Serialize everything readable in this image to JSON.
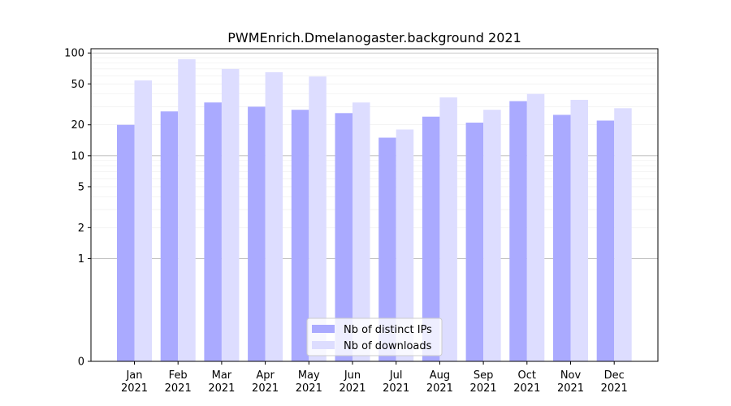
{
  "chart_data": {
    "type": "bar",
    "title": "PWMEnrich.Dmelanogaster.background 2021",
    "xlabel": "",
    "ylabel": "",
    "yscale": "symlog",
    "ylim": [
      0,
      110
    ],
    "yticks": [
      0,
      1,
      2,
      5,
      10,
      20,
      50,
      100
    ],
    "ytick_labels": [
      "0",
      "1",
      "2",
      "5",
      "10",
      "20",
      "50",
      "100"
    ],
    "grid": "horizontal",
    "legend_position": "bottom-center",
    "categories": [
      "Jan\n2021",
      "Feb\n2021",
      "Mar\n2021",
      "Apr\n2021",
      "May\n2021",
      "Jun\n2021",
      "Jul\n2021",
      "Aug\n2021",
      "Sep\n2021",
      "Oct\n2021",
      "Nov\n2021",
      "Dec\n2021"
    ],
    "category_lines": [
      [
        "Jan",
        "2021"
      ],
      [
        "Feb",
        "2021"
      ],
      [
        "Mar",
        "2021"
      ],
      [
        "Apr",
        "2021"
      ],
      [
        "May",
        "2021"
      ],
      [
        "Jun",
        "2021"
      ],
      [
        "Jul",
        "2021"
      ],
      [
        "Aug",
        "2021"
      ],
      [
        "Sep",
        "2021"
      ],
      [
        "Oct",
        "2021"
      ],
      [
        "Nov",
        "2021"
      ],
      [
        "Dec",
        "2021"
      ]
    ],
    "series": [
      {
        "name": "Nb of distinct IPs",
        "color": "#aaaaff",
        "values": [
          20,
          27,
          33,
          30,
          28,
          26,
          15,
          24,
          21,
          34,
          25,
          22
        ]
      },
      {
        "name": "Nb of downloads",
        "color": "#ddddff",
        "values": [
          54,
          87,
          70,
          65,
          59,
          33,
          18,
          37,
          28,
          40,
          35,
          29
        ]
      }
    ]
  }
}
